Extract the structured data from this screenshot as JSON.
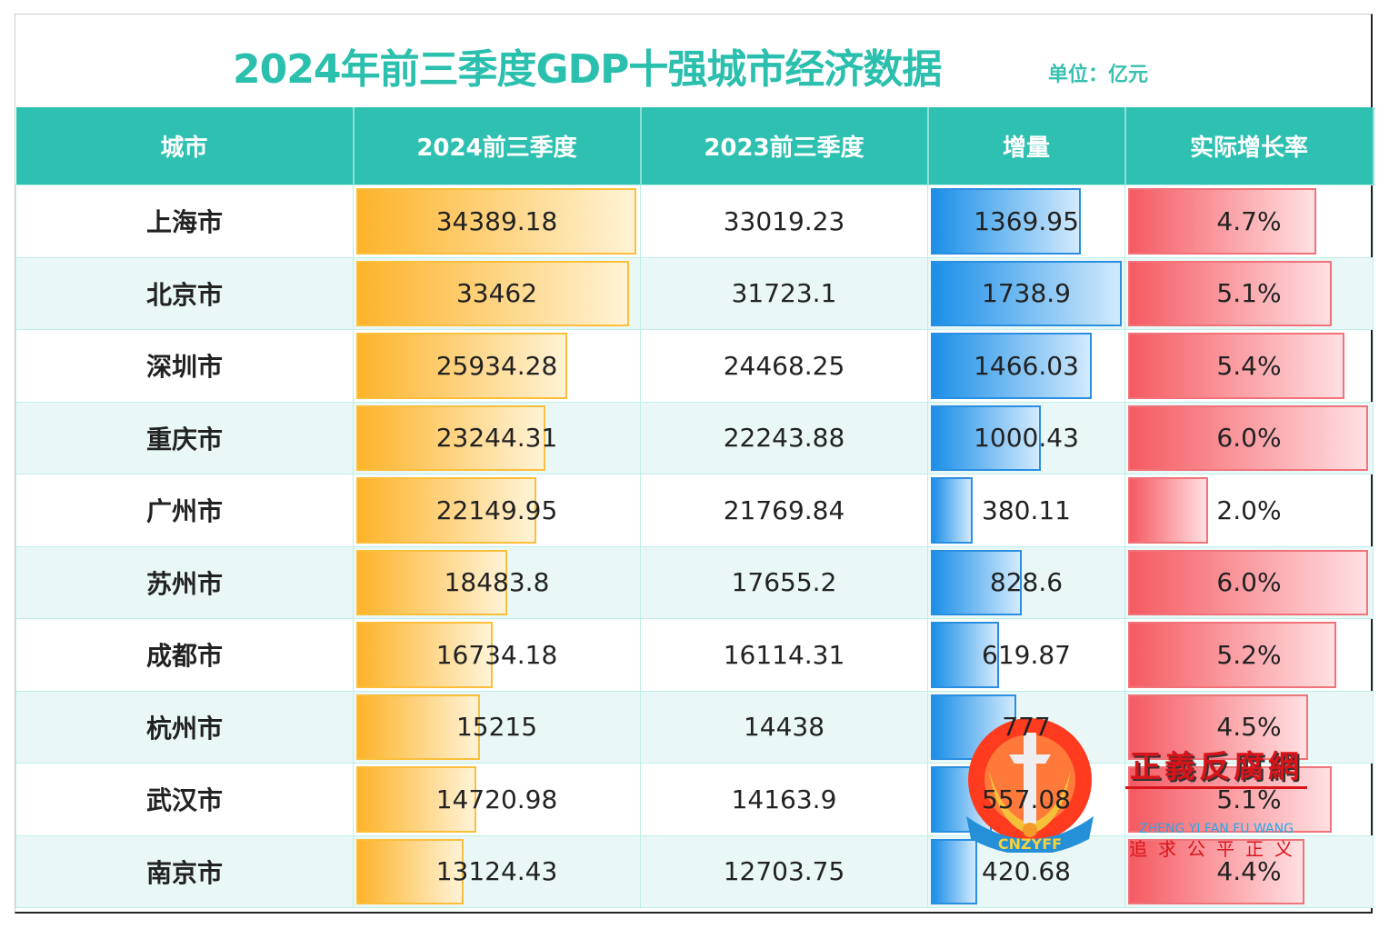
{
  "title": "2024年前三季度GDP十强城市经济数据",
  "unit": "单位：亿元",
  "colors": {
    "accent": "#2ec0b0",
    "gdp_bar": "#fdb32a",
    "increment_bar": "#1b8fe8",
    "rate_bar": "#f55a62"
  },
  "chart_data": {
    "type": "table",
    "title": "2024年前三季度GDP十强城市经济数据",
    "columns": [
      "城市",
      "2024前三季度",
      "2023前三季度",
      "增量",
      "实际增长率"
    ],
    "rows": [
      {
        "city": "上海市",
        "gdp2024": "34389.18",
        "gdp2023": "33019.23",
        "increment": "1369.95",
        "rate": "4.7%"
      },
      {
        "city": "北京市",
        "gdp2024": "33462",
        "gdp2023": "31723.1",
        "increment": "1738.9",
        "rate": "5.1%"
      },
      {
        "city": "深圳市",
        "gdp2024": "25934.28",
        "gdp2023": "24468.25",
        "increment": "1466.03",
        "rate": "5.4%"
      },
      {
        "city": "重庆市",
        "gdp2024": "23244.31",
        "gdp2023": "22243.88",
        "increment": "1000.43",
        "rate": "6.0%"
      },
      {
        "city": "广州市",
        "gdp2024": "22149.95",
        "gdp2023": "21769.84",
        "increment": "380.11",
        "rate": "2.0%"
      },
      {
        "city": "苏州市",
        "gdp2024": "18483.8",
        "gdp2023": "17655.2",
        "increment": "828.6",
        "rate": "6.0%"
      },
      {
        "city": "成都市",
        "gdp2024": "16734.18",
        "gdp2023": "16114.31",
        "increment": "619.87",
        "rate": "5.2%"
      },
      {
        "city": "杭州市",
        "gdp2024": "15215",
        "gdp2023": "14438",
        "increment": "777",
        "rate": "4.5%"
      },
      {
        "city": "武汉市",
        "gdp2024": "14720.98",
        "gdp2023": "14163.9",
        "increment": "557.08",
        "rate": "5.1%"
      },
      {
        "city": "南京市",
        "gdp2024": "13124.43",
        "gdp2023": "12703.75",
        "increment": "420.68",
        "rate": "4.4%"
      }
    ]
  },
  "watermark": {
    "name": "正義反腐網",
    "english": "ZHENG YI FAN FU WANG",
    "slogan": "追求公平正义",
    "logo_text": "CNZYFF"
  }
}
